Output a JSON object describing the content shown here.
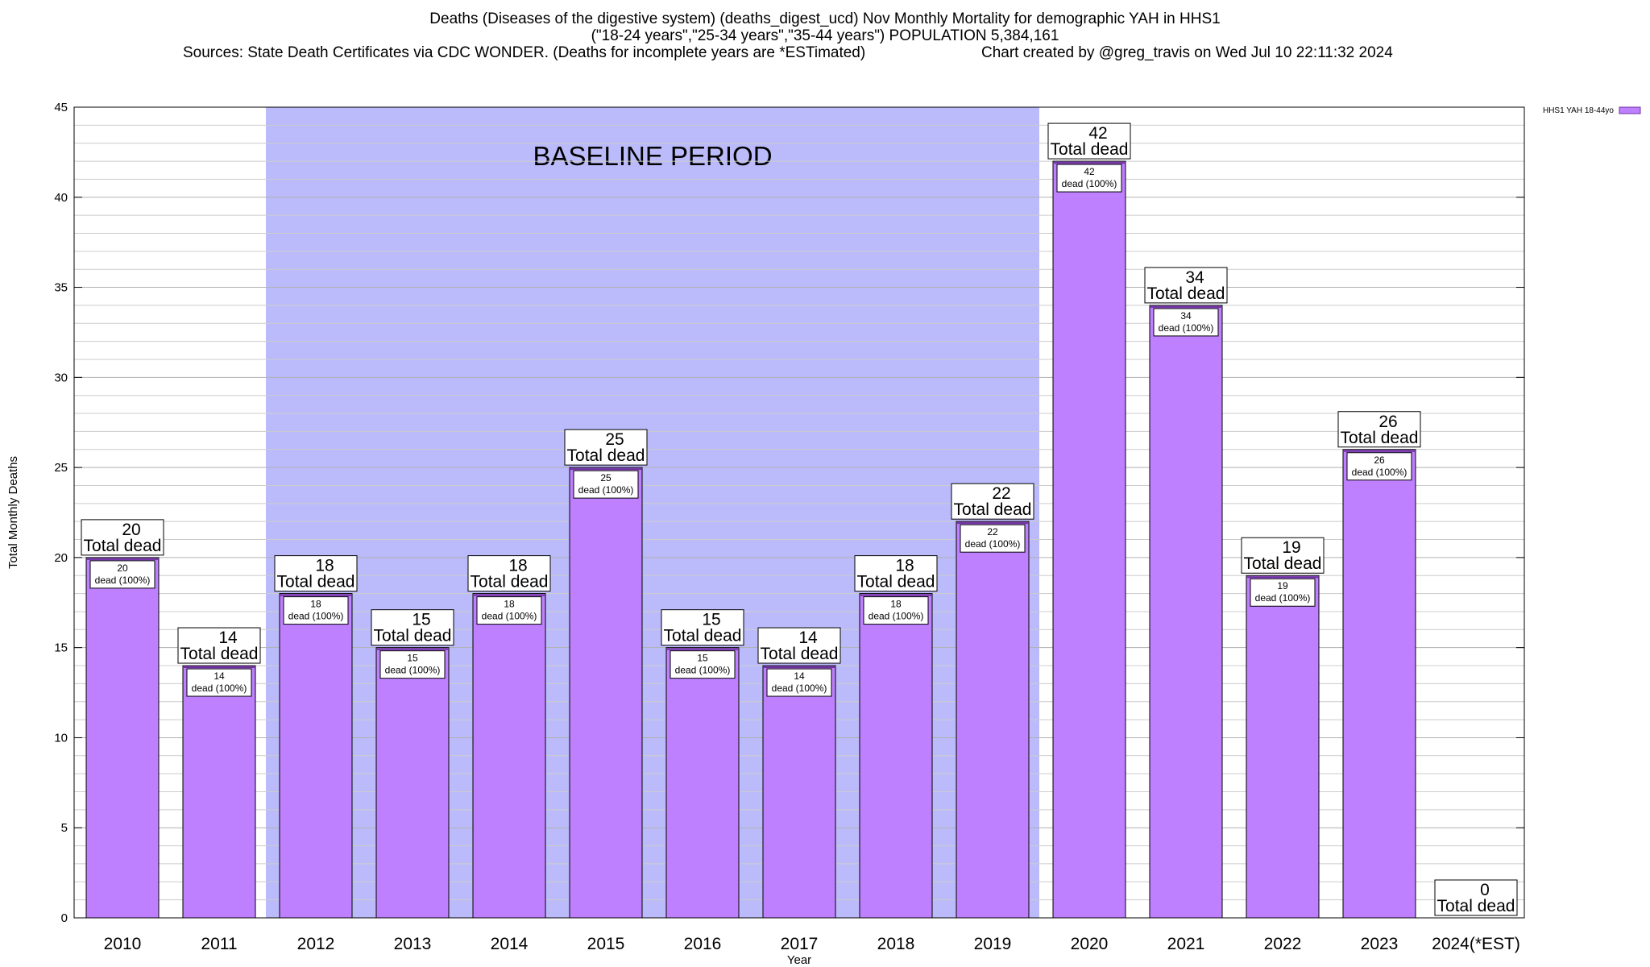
{
  "header": {
    "title_line1": "Deaths (Diseases of the digestive system) (deaths_digest_ucd) Nov Monthly Mortality for demographic YAH in HHS1",
    "title_line2": "(\"18-24 years\",\"25-34 years\",\"35-44 years\") POPULATION 5,384,161",
    "source_text": "Sources: State Death Certificates via CDC WONDER. (Deaths for incomplete years are *ESTimated)",
    "credit_text": "Chart created by @greg_travis on Wed Jul 10 22:11:32 2024"
  },
  "chart_data": {
    "type": "bar",
    "xlabel": "Year",
    "ylabel": "Total Monthly Deaths",
    "ylim": [
      0,
      45
    ],
    "ytick_step": 5,
    "yminor_step": 1,
    "categories": [
      "2010",
      "2011",
      "2012",
      "2013",
      "2014",
      "2015",
      "2016",
      "2017",
      "2018",
      "2019",
      "2020",
      "2021",
      "2022",
      "2023",
      "2024(*EST)"
    ],
    "series": [
      {
        "name": "HHS1 YAH 18-44yo",
        "values": [
          20,
          14,
          18,
          15,
          18,
          25,
          15,
          14,
          18,
          22,
          42,
          34,
          19,
          26,
          0
        ]
      }
    ],
    "total_label_suffix": "Total dead",
    "inner_label_suffix": "dead (100%)",
    "baseline_label": "BASELINE PERIOD",
    "baseline_start": "2012",
    "baseline_end": "2019",
    "legend_position": "top-right",
    "grid": true,
    "colors": {
      "bar_fill": "#bf80ff",
      "bar_stroke": "#7030a0",
      "baseline_fill": "#bbbbfb"
    }
  }
}
